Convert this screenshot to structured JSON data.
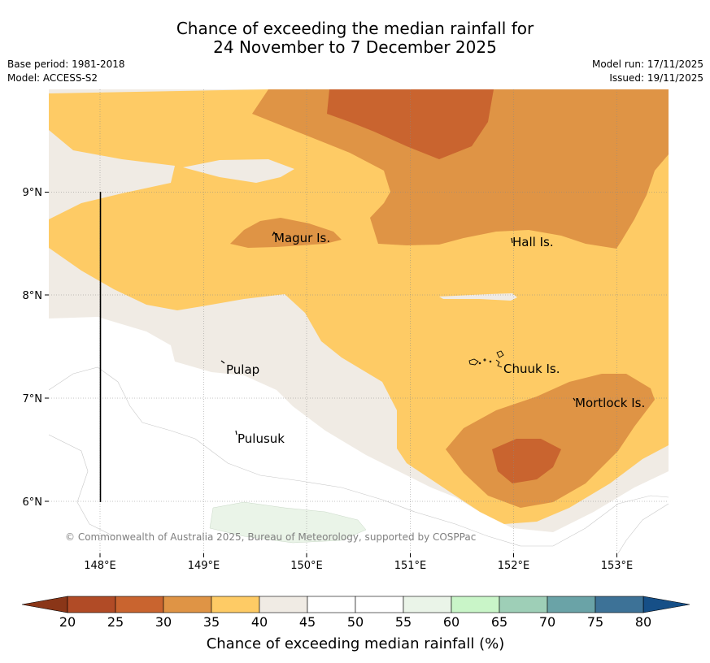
{
  "title": {
    "line1": "Chance of exceeding the median rainfall for",
    "line2": "24 November to 7 December 2025"
  },
  "meta": {
    "base_period": "Base period: 1981-2018",
    "model": "Model: ACCESS-S2",
    "model_run": "Model run: 17/11/2025",
    "issued": "Issued: 19/11/2025"
  },
  "axes": {
    "lat_labels": [
      "9°N",
      "8°N",
      "7°N",
      "6°N"
    ],
    "lon_labels": [
      "148°E",
      "149°E",
      "150°E",
      "151°E",
      "152°E",
      "153°E"
    ]
  },
  "places": [
    "Magur Is.",
    "Hall Is.",
    "Pulap",
    "Chuuk Is.",
    "Mortlock Is.",
    "Pulusuk"
  ],
  "copyright": "© Commonwealth of Australia 2025, Bureau of Meteorology, supported by COSPPac",
  "colorbar": {
    "title": "Chance of exceeding median rainfall (%)",
    "ticks": [
      "20",
      "25",
      "30",
      "35",
      "40",
      "45",
      "50",
      "55",
      "60",
      "65",
      "70",
      "75",
      "80"
    ],
    "colors": [
      "#b14b26",
      "#c9642f",
      "#df9445",
      "#fecb65",
      "#f0ebe4",
      "#ffffff",
      "#ffffff",
      "#eaf4e8",
      "#c9f5c8",
      "#9ecfb7",
      "#6aa3a7",
      "#3d7297"
    ],
    "low_color": "#8a3618",
    "high_color": "#164f87"
  }
}
